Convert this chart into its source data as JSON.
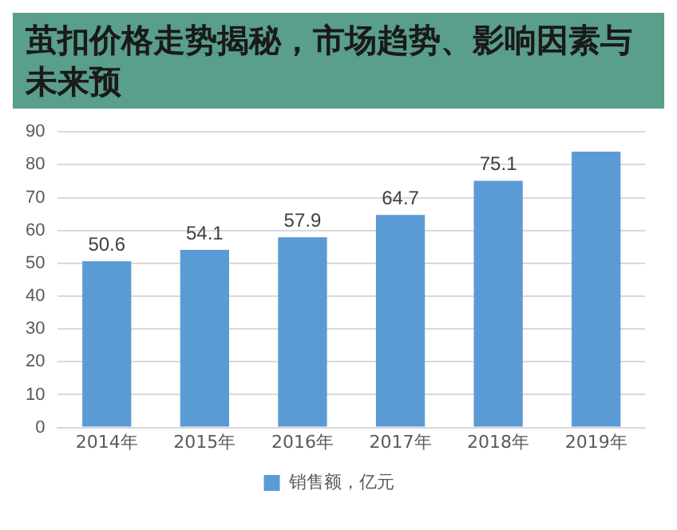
{
  "chart_data": {
    "type": "bar",
    "title": "茧扣价格走势揭秘，市场趋势、影响因素与未来预",
    "categories": [
      "2014年",
      "2015年",
      "2016年",
      "2017年",
      "2018年",
      "2019年"
    ],
    "series": [
      {
        "name": "销售额，亿元",
        "color": "#5b9bd5",
        "values": [
          50.6,
          54.1,
          57.9,
          64.7,
          75.1,
          84
        ]
      }
    ],
    "value_labels": [
      "50.6",
      "54.1",
      "57.9",
      "64.7",
      "75.1",
      null
    ],
    "ylim": [
      0,
      90
    ],
    "yticks": [
      0,
      10,
      20,
      30,
      40,
      50,
      60,
      70,
      80,
      90
    ],
    "grid": "y",
    "legend": "bottom"
  }
}
